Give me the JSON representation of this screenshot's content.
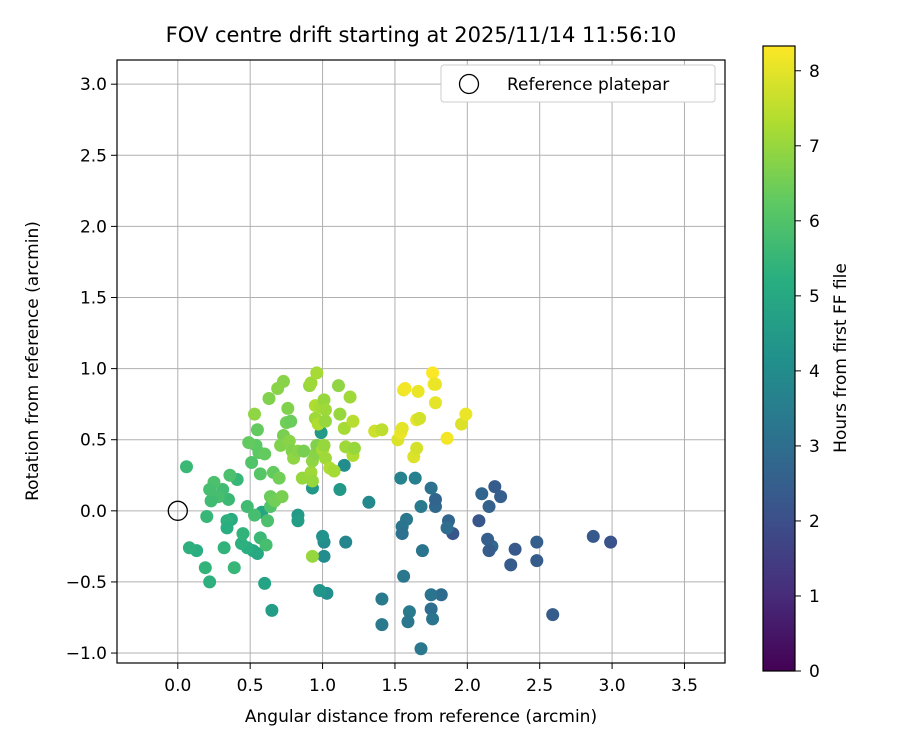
{
  "chart_data": {
    "type": "scatter",
    "title": "FOV centre drift starting at 2025/11/14 11:56:10",
    "xlabel": "Angular distance from reference (arcmin)",
    "ylabel": "Rotation from reference (arcmin)",
    "xlim": [
      -0.42,
      3.78
    ],
    "ylim": [
      -1.07,
      3.17
    ],
    "xticks": [
      "0.0",
      "0.5",
      "1.0",
      "1.5",
      "2.0",
      "2.5",
      "3.0",
      "3.5"
    ],
    "yticks": [
      "−1.0",
      "−0.5",
      "0.0",
      "0.5",
      "1.0",
      "1.5",
      "2.0",
      "2.5",
      "3.0"
    ],
    "grid": true,
    "legend": {
      "position": "top-right",
      "entries": [
        "Reference platepar"
      ]
    },
    "reference_point": {
      "x": 0.0,
      "y": 0.0,
      "marker": "open-circle"
    },
    "colorbar": {
      "label": "Hours from first FF file",
      "colormap": "viridis",
      "range": [
        0,
        8.33
      ],
      "ticks": [
        "0",
        "1",
        "2",
        "3",
        "4",
        "5",
        "6",
        "7",
        "8"
      ]
    },
    "points": [
      {
        "x": 2.99,
        "y": -0.22,
        "c": 2.1
      },
      {
        "x": 2.87,
        "y": -0.18,
        "c": 2.3
      },
      {
        "x": 2.59,
        "y": -0.73,
        "c": 2.4
      },
      {
        "x": 2.48,
        "y": -0.22,
        "c": 2.5
      },
      {
        "x": 2.48,
        "y": -0.35,
        "c": 2.4
      },
      {
        "x": 2.33,
        "y": -0.27,
        "c": 2.3
      },
      {
        "x": 2.3,
        "y": -0.38,
        "c": 2.4
      },
      {
        "x": 2.23,
        "y": 0.1,
        "c": 2.5
      },
      {
        "x": 2.19,
        "y": 0.17,
        "c": 2.4
      },
      {
        "x": 2.17,
        "y": -0.25,
        "c": 2.8
      },
      {
        "x": 2.15,
        "y": -0.28,
        "c": 2.4
      },
      {
        "x": 2.14,
        "y": -0.2,
        "c": 2.5
      },
      {
        "x": 2.15,
        "y": 0.03,
        "c": 2.6
      },
      {
        "x": 2.1,
        "y": 0.12,
        "c": 2.7
      },
      {
        "x": 2.08,
        "y": -0.07,
        "c": 2.2
      },
      {
        "x": 1.9,
        "y": -0.16,
        "c": 2.2
      },
      {
        "x": 1.87,
        "y": -0.07,
        "c": 2.7
      },
      {
        "x": 1.86,
        "y": -0.12,
        "c": 3.0
      },
      {
        "x": 1.82,
        "y": -0.59,
        "c": 2.9
      },
      {
        "x": 1.78,
        "y": 0.03,
        "c": 2.8
      },
      {
        "x": 1.78,
        "y": 0.08,
        "c": 2.7
      },
      {
        "x": 1.75,
        "y": 0.16,
        "c": 3.1
      },
      {
        "x": 1.75,
        "y": -0.59,
        "c": 3.2
      },
      {
        "x": 1.75,
        "y": -0.69,
        "c": 3.0
      },
      {
        "x": 1.76,
        "y": -0.76,
        "c": 3.2
      },
      {
        "x": 1.68,
        "y": -0.97,
        "c": 3.3
      },
      {
        "x": 1.69,
        "y": -0.28,
        "c": 3.2
      },
      {
        "x": 1.68,
        "y": 0.03,
        "c": 3.4
      },
      {
        "x": 1.64,
        "y": 0.23,
        "c": 3.6
      },
      {
        "x": 1.6,
        "y": -0.71,
        "c": 3.4
      },
      {
        "x": 1.59,
        "y": -0.78,
        "c": 3.3
      },
      {
        "x": 1.58,
        "y": -0.06,
        "c": 3.3
      },
      {
        "x": 1.55,
        "y": -0.11,
        "c": 3.2
      },
      {
        "x": 1.55,
        "y": -0.16,
        "c": 3.1
      },
      {
        "x": 1.56,
        "y": -0.46,
        "c": 3.3
      },
      {
        "x": 1.54,
        "y": 0.23,
        "c": 3.7
      },
      {
        "x": 1.41,
        "y": -0.62,
        "c": 3.4
      },
      {
        "x": 1.41,
        "y": -0.8,
        "c": 3.4
      },
      {
        "x": 1.32,
        "y": 0.06,
        "c": 3.9
      },
      {
        "x": 1.16,
        "y": -0.22,
        "c": 3.8
      },
      {
        "x": 1.15,
        "y": 0.32,
        "c": 4.0
      },
      {
        "x": 1.12,
        "y": 0.15,
        "c": 4.4
      },
      {
        "x": 1.03,
        "y": -0.58,
        "c": 4.1
      },
      {
        "x": 0.98,
        "y": -0.56,
        "c": 4.3
      },
      {
        "x": 1.01,
        "y": -0.22,
        "c": 4.0
      },
      {
        "x": 1.0,
        "y": -0.18,
        "c": 4.2
      },
      {
        "x": 1.01,
        "y": -0.32,
        "c": 4.0
      },
      {
        "x": 0.99,
        "y": 0.55,
        "c": 4.5
      },
      {
        "x": 0.93,
        "y": 0.16,
        "c": 4.4
      },
      {
        "x": 0.83,
        "y": -0.03,
        "c": 4.5
      },
      {
        "x": 0.83,
        "y": -0.07,
        "c": 4.6
      },
      {
        "x": 0.65,
        "y": -0.7,
        "c": 4.6
      },
      {
        "x": 0.6,
        "y": -0.51,
        "c": 4.8
      },
      {
        "x": 0.58,
        "y": -0.01,
        "c": 4.9
      },
      {
        "x": 0.55,
        "y": -0.3,
        "c": 5.0
      },
      {
        "x": 0.52,
        "y": -0.28,
        "c": 5.0
      },
      {
        "x": 0.48,
        "y": -0.26,
        "c": 5.2
      },
      {
        "x": 0.44,
        "y": -0.23,
        "c": 5.3
      },
      {
        "x": 0.41,
        "y": 0.22,
        "c": 5.5
      },
      {
        "x": 0.39,
        "y": -0.4,
        "c": 5.5
      },
      {
        "x": 0.37,
        "y": -0.06,
        "c": 5.1
      },
      {
        "x": 0.34,
        "y": -0.07,
        "c": 5.3
      },
      {
        "x": 0.34,
        "y": -0.12,
        "c": 5.2
      },
      {
        "x": 0.32,
        "y": -0.26,
        "c": 5.4
      },
      {
        "x": 0.35,
        "y": 0.08,
        "c": 5.6
      },
      {
        "x": 0.36,
        "y": 0.25,
        "c": 5.9
      },
      {
        "x": 0.31,
        "y": 0.15,
        "c": 5.7
      },
      {
        "x": 0.28,
        "y": 0.1,
        "c": 5.8
      },
      {
        "x": 0.25,
        "y": 0.2,
        "c": 5.9
      },
      {
        "x": 0.23,
        "y": 0.07,
        "c": 5.7
      },
      {
        "x": 0.22,
        "y": 0.15,
        "c": 5.8
      },
      {
        "x": 0.2,
        "y": -0.04,
        "c": 5.5
      },
      {
        "x": 0.22,
        "y": -0.5,
        "c": 5.3
      },
      {
        "x": 0.19,
        "y": -0.4,
        "c": 5.4
      },
      {
        "x": 0.13,
        "y": -0.28,
        "c": 5.2
      },
      {
        "x": 0.08,
        "y": -0.26,
        "c": 5.3
      },
      {
        "x": 0.06,
        "y": 0.31,
        "c": 5.6
      },
      {
        "x": 0.45,
        "y": -0.16,
        "c": 5.4
      },
      {
        "x": 0.48,
        "y": 0.03,
        "c": 5.7
      },
      {
        "x": 0.53,
        "y": -0.03,
        "c": 5.8
      },
      {
        "x": 0.57,
        "y": -0.19,
        "c": 5.6
      },
      {
        "x": 0.57,
        "y": 0.26,
        "c": 6.1
      },
      {
        "x": 0.54,
        "y": 0.46,
        "c": 6.2
      },
      {
        "x": 0.49,
        "y": 0.48,
        "c": 6.3
      },
      {
        "x": 0.51,
        "y": 0.34,
        "c": 6.0
      },
      {
        "x": 0.56,
        "y": 0.41,
        "c": 6.2
      },
      {
        "x": 0.6,
        "y": 0.4,
        "c": 6.3
      },
      {
        "x": 0.61,
        "y": -0.24,
        "c": 5.8
      },
      {
        "x": 0.62,
        "y": -0.07,
        "c": 5.9
      },
      {
        "x": 0.64,
        "y": 0.03,
        "c": 6.0
      },
      {
        "x": 0.64,
        "y": 0.1,
        "c": 6.4
      },
      {
        "x": 0.66,
        "y": 0.27,
        "c": 6.3
      },
      {
        "x": 0.67,
        "y": 0.07,
        "c": 6.5
      },
      {
        "x": 0.7,
        "y": 0.23,
        "c": 6.5
      },
      {
        "x": 0.72,
        "y": 0.1,
        "c": 6.6
      },
      {
        "x": 0.73,
        "y": 0.53,
        "c": 6.6
      },
      {
        "x": 0.71,
        "y": 0.46,
        "c": 6.7
      },
      {
        "x": 0.75,
        "y": 0.62,
        "c": 6.5
      },
      {
        "x": 0.77,
        "y": 0.49,
        "c": 6.8
      },
      {
        "x": 0.79,
        "y": 0.42,
        "c": 6.7
      },
      {
        "x": 0.8,
        "y": 0.37,
        "c": 6.9
      },
      {
        "x": 0.83,
        "y": 0.42,
        "c": 6.8
      },
      {
        "x": 0.86,
        "y": 0.23,
        "c": 7.0
      },
      {
        "x": 0.87,
        "y": 0.42,
        "c": 6.6
      },
      {
        "x": 0.92,
        "y": 0.27,
        "c": 7.1
      },
      {
        "x": 0.93,
        "y": 0.35,
        "c": 6.9
      },
      {
        "x": 0.95,
        "y": 0.4,
        "c": 6.8
      },
      {
        "x": 0.96,
        "y": 0.46,
        "c": 6.7
      },
      {
        "x": 0.93,
        "y": 0.21,
        "c": 7.0
      },
      {
        "x": 0.93,
        "y": -0.32,
        "c": 7.0
      },
      {
        "x": 0.53,
        "y": 0.68,
        "c": 6.9
      },
      {
        "x": 0.55,
        "y": 0.57,
        "c": 6.3
      },
      {
        "x": 0.63,
        "y": 0.79,
        "c": 6.7
      },
      {
        "x": 0.69,
        "y": 0.86,
        "c": 6.8
      },
      {
        "x": 0.73,
        "y": 0.91,
        "c": 6.8
      },
      {
        "x": 0.76,
        "y": 0.72,
        "c": 6.7
      },
      {
        "x": 0.78,
        "y": 0.63,
        "c": 6.4
      },
      {
        "x": 0.91,
        "y": 0.88,
        "c": 7.0
      },
      {
        "x": 0.92,
        "y": 0.9,
        "c": 7.1
      },
      {
        "x": 0.96,
        "y": 0.97,
        "c": 7.2
      },
      {
        "x": 0.95,
        "y": 0.74,
        "c": 7.3
      },
      {
        "x": 0.95,
        "y": 0.65,
        "c": 7.1
      },
      {
        "x": 0.97,
        "y": 0.61,
        "c": 7.3
      },
      {
        "x": 0.99,
        "y": 0.73,
        "c": 7.2
      },
      {
        "x": 1.01,
        "y": 0.78,
        "c": 7.0
      },
      {
        "x": 1.02,
        "y": 0.71,
        "c": 7.1
      },
      {
        "x": 1.02,
        "y": 0.63,
        "c": 7.0
      },
      {
        "x": 1.0,
        "y": 0.43,
        "c": 7.2
      },
      {
        "x": 1.01,
        "y": 0.46,
        "c": 7.0
      },
      {
        "x": 1.02,
        "y": 0.37,
        "c": 7.1
      },
      {
        "x": 1.05,
        "y": 0.3,
        "c": 7.3
      },
      {
        "x": 1.08,
        "y": 0.28,
        "c": 7.2
      },
      {
        "x": 1.11,
        "y": 0.88,
        "c": 6.9
      },
      {
        "x": 1.12,
        "y": 0.68,
        "c": 7.0
      },
      {
        "x": 1.16,
        "y": 0.45,
        "c": 7.1
      },
      {
        "x": 1.15,
        "y": 0.58,
        "c": 7.2
      },
      {
        "x": 1.19,
        "y": 0.8,
        "c": 7.1
      },
      {
        "x": 1.21,
        "y": 0.39,
        "c": 7.3
      },
      {
        "x": 1.21,
        "y": 0.63,
        "c": 7.4
      },
      {
        "x": 1.22,
        "y": 0.44,
        "c": 7.0
      },
      {
        "x": 1.36,
        "y": 0.56,
        "c": 7.7
      },
      {
        "x": 1.41,
        "y": 0.57,
        "c": 7.5
      },
      {
        "x": 1.52,
        "y": 0.5,
        "c": 7.9
      },
      {
        "x": 1.54,
        "y": 0.55,
        "c": 8.1
      },
      {
        "x": 1.55,
        "y": 0.58,
        "c": 8.0
      },
      {
        "x": 1.56,
        "y": 0.85,
        "c": 8.1
      },
      {
        "x": 1.57,
        "y": 0.86,
        "c": 8.2
      },
      {
        "x": 1.63,
        "y": 0.38,
        "c": 7.9
      },
      {
        "x": 1.65,
        "y": 0.44,
        "c": 7.8
      },
      {
        "x": 1.65,
        "y": 0.64,
        "c": 8.0
      },
      {
        "x": 1.67,
        "y": 0.65,
        "c": 7.8
      },
      {
        "x": 1.66,
        "y": 0.84,
        "c": 8.1
      },
      {
        "x": 1.76,
        "y": 0.97,
        "c": 8.3
      },
      {
        "x": 1.77,
        "y": 0.89,
        "c": 8.2
      },
      {
        "x": 1.78,
        "y": 0.89,
        "c": 8.1
      },
      {
        "x": 1.78,
        "y": 0.76,
        "c": 8.0
      },
      {
        "x": 1.86,
        "y": 0.51,
        "c": 8.2
      },
      {
        "x": 1.96,
        "y": 0.61,
        "c": 7.9
      },
      {
        "x": 1.99,
        "y": 0.68,
        "c": 8.1
      }
    ]
  }
}
